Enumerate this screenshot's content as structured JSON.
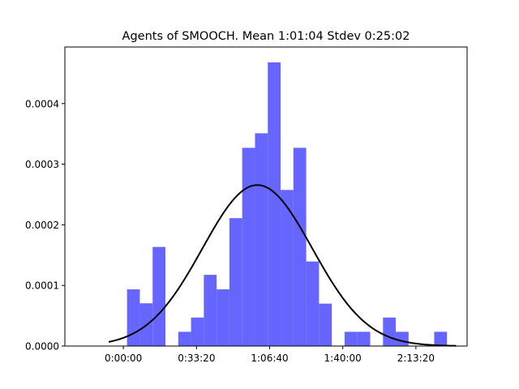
{
  "chart_data": {
    "type": "bar",
    "title": "Agents of SMOOCH. Mean 1:01:04 Stdev 0:25:02",
    "xlabel": "",
    "ylabel": "",
    "x_unit": "seconds",
    "xlim": [
      -1600,
      9400
    ],
    "ylim": [
      0,
      0.0004933
    ],
    "x_ticks": [
      {
        "value": 0,
        "label": "0:00:00"
      },
      {
        "value": 2000,
        "label": "0:33:20"
      },
      {
        "value": 4000,
        "label": "1:06:40"
      },
      {
        "value": 6000,
        "label": "1:40:00"
      },
      {
        "value": 8000,
        "label": "2:13:20"
      }
    ],
    "y_ticks": [
      {
        "value": 0,
        "label": "0.0000"
      },
      {
        "value": 0.0001,
        "label": "0.0001"
      },
      {
        "value": 0.0002,
        "label": "0.0002"
      },
      {
        "value": 0.0003,
        "label": "0.0003"
      },
      {
        "value": 0.0004,
        "label": "0.0004"
      }
    ],
    "histogram": {
      "color": "#6666ff",
      "bins": [
        {
          "x0": 100,
          "x1": 450,
          "value": 9.35e-05
        },
        {
          "x0": 450,
          "x1": 800,
          "value": 7.05e-05
        },
        {
          "x0": 800,
          "x1": 1150,
          "value": 0.0001635
        },
        {
          "x0": 1150,
          "x1": 1500,
          "value": 0
        },
        {
          "x0": 1500,
          "x1": 1850,
          "value": 2.35e-05
        },
        {
          "x0": 1850,
          "x1": 2200,
          "value": 4.7e-05
        },
        {
          "x0": 2200,
          "x1": 2550,
          "value": 0.0001175
        },
        {
          "x0": 2550,
          "x1": 2900,
          "value": 9.35e-05
        },
        {
          "x0": 2900,
          "x1": 3250,
          "value": 0.000211
        },
        {
          "x0": 3250,
          "x1": 3600,
          "value": 0.000327
        },
        {
          "x0": 3600,
          "x1": 3950,
          "value": 0.000351
        },
        {
          "x0": 3950,
          "x1": 4300,
          "value": 0.000468
        },
        {
          "x0": 4300,
          "x1": 4650,
          "value": 0.0002575
        },
        {
          "x0": 4650,
          "x1": 5000,
          "value": 0.000327
        },
        {
          "x0": 5000,
          "x1": 5350,
          "value": 0.0001395
        },
        {
          "x0": 5350,
          "x1": 5700,
          "value": 7e-05
        },
        {
          "x0": 5700,
          "x1": 6050,
          "value": 0
        },
        {
          "x0": 6050,
          "x1": 6400,
          "value": 2.35e-05
        },
        {
          "x0": 6400,
          "x1": 6750,
          "value": 2.35e-05
        },
        {
          "x0": 6750,
          "x1": 7100,
          "value": 0
        },
        {
          "x0": 7100,
          "x1": 7450,
          "value": 4.7e-05
        },
        {
          "x0": 7450,
          "x1": 7800,
          "value": 2.35e-05
        },
        {
          "x0": 7800,
          "x1": 8150,
          "value": 0
        },
        {
          "x0": 8150,
          "x1": 8500,
          "value": 0
        },
        {
          "x0": 8500,
          "x1": 8850,
          "value": 2.35e-05
        }
      ]
    },
    "fit_curve": {
      "type": "normal_pdf",
      "mean": 3664,
      "stdev": 1502,
      "x_start": -400,
      "x_end": 9100,
      "color": "#000000"
    }
  }
}
